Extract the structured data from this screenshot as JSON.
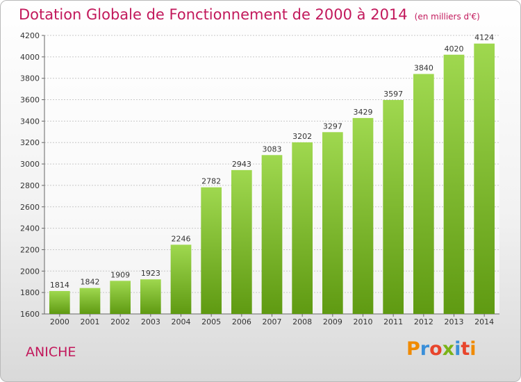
{
  "header": {
    "title": "Dotation Globale de Fonctionnement de 2000 à 2014",
    "subtitle": "(en milliers d'€)"
  },
  "footer": {
    "city": "ANICHE",
    "logo_text": "Proxiti",
    "logo_colors": [
      "#f08a00",
      "#3a8fd9",
      "#e8452c",
      "#7ab317",
      "#3a8fd9",
      "#e8452c",
      "#f08a00"
    ]
  },
  "colors": {
    "accent": "#c2185b",
    "bar_top": "#9fd84f",
    "bar_bottom": "#5f9a12"
  },
  "chart_data": {
    "type": "bar",
    "categories": [
      "2000",
      "2001",
      "2002",
      "2003",
      "2004",
      "2005",
      "2006",
      "2007",
      "2008",
      "2009",
      "2010",
      "2011",
      "2012",
      "2013",
      "2014"
    ],
    "values": [
      1814,
      1842,
      1909,
      1923,
      2246,
      2782,
      2943,
      3083,
      3202,
      3297,
      3429,
      3597,
      3840,
      4020,
      4124
    ],
    "ylim": [
      1600,
      4200
    ],
    "yticks": [
      1600,
      1800,
      2000,
      2200,
      2400,
      2600,
      2800,
      3000,
      3200,
      3400,
      3600,
      3800,
      4000,
      4200
    ],
    "grid": true,
    "legend": "none"
  }
}
